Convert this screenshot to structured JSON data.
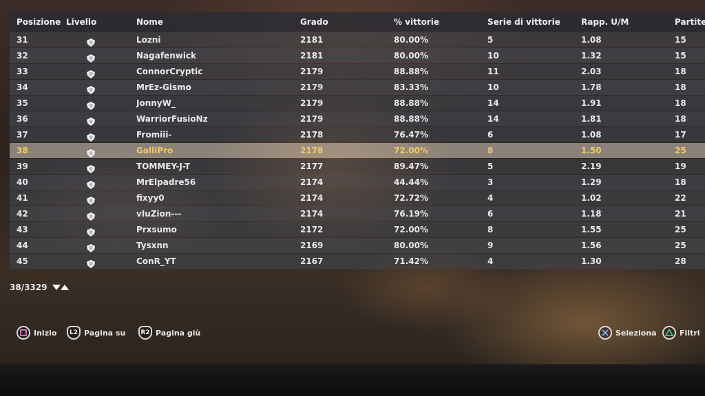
{
  "columns": {
    "posizione": "Posizione",
    "livello": "Livello",
    "nome": "Nome",
    "grado": "Grado",
    "pct": "% vittorie",
    "serie": "Serie di vittorie",
    "rapp": "Rapp. U/M",
    "partite": "Partite"
  },
  "rows": [
    {
      "pos": "31",
      "name": "Lozni",
      "grado": "2181",
      "pct": "80.00%",
      "serie": "5",
      "rapp": "1.08",
      "partite": "15"
    },
    {
      "pos": "32",
      "name": "Nagafenwick",
      "grado": "2181",
      "pct": "80.00%",
      "serie": "10",
      "rapp": "1.32",
      "partite": "15"
    },
    {
      "pos": "33",
      "name": "ConnorCryptic",
      "grado": "2179",
      "pct": "88.88%",
      "serie": "11",
      "rapp": "2.03",
      "partite": "18"
    },
    {
      "pos": "34",
      "name": "MrEz-Gismo",
      "grado": "2179",
      "pct": "83.33%",
      "serie": "10",
      "rapp": "1.78",
      "partite": "18"
    },
    {
      "pos": "35",
      "name": "JonnyW_",
      "grado": "2179",
      "pct": "88.88%",
      "serie": "14",
      "rapp": "1.91",
      "partite": "18"
    },
    {
      "pos": "36",
      "name": "WarriorFusioNz",
      "grado": "2179",
      "pct": "88.88%",
      "serie": "14",
      "rapp": "1.81",
      "partite": "18"
    },
    {
      "pos": "37",
      "name": "Fromiii-",
      "grado": "2178",
      "pct": "76.47%",
      "serie": "6",
      "rapp": "1.08",
      "partite": "17"
    },
    {
      "pos": "38",
      "name": "GalliPro",
      "grado": "2178",
      "pct": "72.00%",
      "serie": "8",
      "rapp": "1.50",
      "partite": "25"
    },
    {
      "pos": "39",
      "name": "TOMMEY-J-T",
      "grado": "2177",
      "pct": "89.47%",
      "serie": "5",
      "rapp": "2.19",
      "partite": "19"
    },
    {
      "pos": "40",
      "name": "MrElpadre56",
      "grado": "2174",
      "pct": "44.44%",
      "serie": "3",
      "rapp": "1.29",
      "partite": "18"
    },
    {
      "pos": "41",
      "name": "fixyy0",
      "grado": "2174",
      "pct": "72.72%",
      "serie": "4",
      "rapp": "1.02",
      "partite": "22"
    },
    {
      "pos": "42",
      "name": "vIuZion---",
      "grado": "2174",
      "pct": "76.19%",
      "serie": "6",
      "rapp": "1.18",
      "partite": "21"
    },
    {
      "pos": "43",
      "name": "Prxsumo",
      "grado": "2172",
      "pct": "72.00%",
      "serie": "8",
      "rapp": "1.55",
      "partite": "25"
    },
    {
      "pos": "44",
      "name": "Tysxnn",
      "grado": "2169",
      "pct": "80.00%",
      "serie": "9",
      "rapp": "1.56",
      "partite": "25"
    },
    {
      "pos": "45",
      "name": "ConR_YT",
      "grado": "2167",
      "pct": "71.42%",
      "serie": "4",
      "rapp": "1.30",
      "partite": "28"
    }
  ],
  "selected_row": 7,
  "level_icon": "rank-emblem-icon",
  "pager": {
    "text": "38/3329",
    "icon": "up-down-arrows-icon"
  },
  "controls": {
    "start": {
      "icon": "square-button-icon",
      "label": "Inizio"
    },
    "page_up": {
      "icon": "l2-button-icon",
      "glyph": "L2",
      "label": "Pagina su"
    },
    "page_down": {
      "icon": "r2-button-icon",
      "glyph": "R2",
      "label": "Pagina giù"
    },
    "select": {
      "icon": "cross-button-icon",
      "label": "Seleziona"
    },
    "filters": {
      "icon": "triangle-button-icon",
      "label": "Filtri"
    }
  },
  "colors": {
    "selected_text": "#f2c96a",
    "square": "#e58ad0",
    "cross": "#8fb3ff",
    "triangle": "#4fd6a8"
  }
}
